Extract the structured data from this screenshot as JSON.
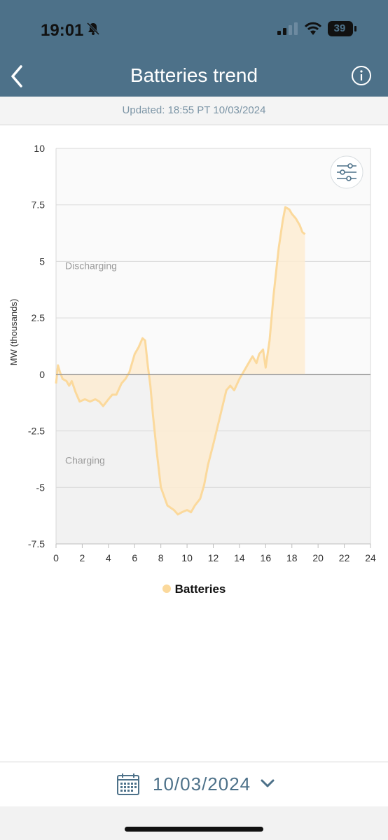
{
  "status_bar": {
    "time": "19:01",
    "battery": "39",
    "icons": [
      "bell-slash-icon",
      "cellular-signal-icon",
      "wifi-icon",
      "battery-icon"
    ]
  },
  "nav": {
    "title": "Batteries trend",
    "icons": [
      "back-chevron-icon",
      "info-icon"
    ]
  },
  "updated": "Updated: 18:55 PT 10/03/2024",
  "chart_data": {
    "type": "area",
    "ylabel": "MW (thousands)",
    "xlim": [
      0,
      24
    ],
    "ylim": [
      -7.5,
      10
    ],
    "y_ticks": [
      "10",
      "7.5",
      "5",
      "2.5",
      "0",
      "-2.5",
      "-5",
      "-7.5"
    ],
    "x_ticks": [
      "0",
      "2",
      "4",
      "6",
      "8",
      "10",
      "12",
      "14",
      "16",
      "18",
      "20",
      "22",
      "24"
    ],
    "annotations": [
      "Discharging",
      "Charging"
    ],
    "grid": true,
    "legend_position": "bottom",
    "series": [
      {
        "name": "Batteries",
        "color": "#fbd99c",
        "x": [
          0,
          0.15,
          0.3,
          0.5,
          0.8,
          1.0,
          1.2,
          1.5,
          1.8,
          2.2,
          2.6,
          3.0,
          3.3,
          3.6,
          4.0,
          4.3,
          4.6,
          5.0,
          5.3,
          5.6,
          6.0,
          6.3,
          6.6,
          6.8,
          7.0,
          7.2,
          7.4,
          7.7,
          8.0,
          8.5,
          9.0,
          9.3,
          9.6,
          10.0,
          10.3,
          10.6,
          11.0,
          11.3,
          11.6,
          12.0,
          12.5,
          13.0,
          13.3,
          13.6,
          14.0,
          14.3,
          14.6,
          15.0,
          15.3,
          15.5,
          15.8,
          16.0,
          16.3,
          16.6,
          17.0,
          17.3,
          17.5,
          17.8,
          18.0,
          18.3,
          18.6,
          18.8,
          19.0
        ],
        "y": [
          -0.4,
          0.4,
          0.1,
          -0.2,
          -0.3,
          -0.5,
          -0.3,
          -0.8,
          -1.2,
          -1.1,
          -1.2,
          -1.1,
          -1.2,
          -1.4,
          -1.1,
          -0.9,
          -0.9,
          -0.4,
          -0.2,
          0.1,
          0.9,
          1.2,
          1.6,
          1.5,
          0.4,
          -0.5,
          -1.8,
          -3.5,
          -5.0,
          -5.8,
          -6.0,
          -6.2,
          -6.1,
          -6.0,
          -6.1,
          -5.8,
          -5.5,
          -4.9,
          -4.0,
          -3.1,
          -1.9,
          -0.7,
          -0.5,
          -0.7,
          -0.2,
          0.1,
          0.4,
          0.8,
          0.5,
          0.9,
          1.1,
          0.3,
          1.5,
          3.5,
          5.6,
          6.8,
          7.4,
          7.3,
          7.1,
          6.9,
          6.6,
          6.3,
          6.2
        ]
      }
    ]
  },
  "legend": {
    "label": "Batteries"
  },
  "footer": {
    "date": "10/03/2024",
    "icons": [
      "calendar-icon",
      "chevron-down-icon"
    ]
  }
}
